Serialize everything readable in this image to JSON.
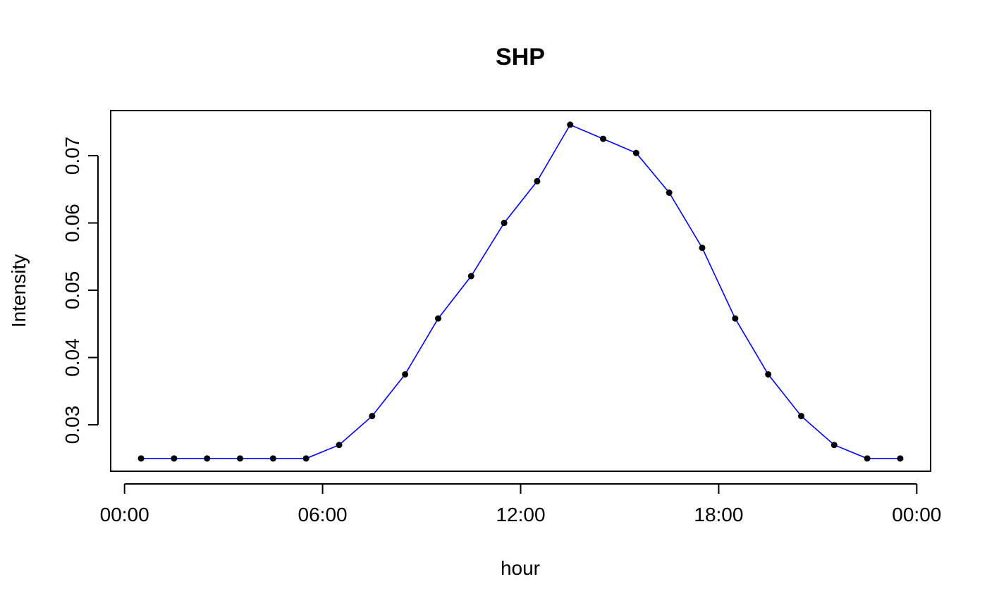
{
  "chart_data": {
    "type": "line",
    "title": "SHP",
    "xlabel": "hour",
    "ylabel": "Intensity",
    "x_tick_labels": [
      "00:00",
      "06:00",
      "12:00",
      "18:00",
      "00:00"
    ],
    "x_tick_hours": [
      0,
      6,
      12,
      18,
      24
    ],
    "y_tick_labels": [
      "0.03",
      "0.04",
      "0.05",
      "0.06",
      "0.07"
    ],
    "y_tick_values": [
      0.03,
      0.04,
      0.05,
      0.06,
      0.07
    ],
    "xlim": [
      -0.42,
      24.42
    ],
    "ylim": [
      0.0231,
      0.0767
    ],
    "grid": false,
    "line_color": "#0000ff",
    "point_color": "#000000",
    "series": [
      {
        "x": [
          0.5,
          1.5,
          2.5,
          3.5,
          4.5,
          5.5,
          6.5,
          7.5,
          8.5,
          9.5,
          10.5,
          11.5,
          12.5,
          13.5,
          14.5,
          15.5,
          16.5,
          17.5,
          18.5,
          19.5,
          20.5,
          21.5,
          22.5,
          23.5
        ],
        "values": [
          0.025,
          0.025,
          0.025,
          0.025,
          0.025,
          0.025,
          0.027,
          0.0313,
          0.0375,
          0.0458,
          0.0521,
          0.06,
          0.0662,
          0.0746,
          0.0725,
          0.0704,
          0.0645,
          0.0563,
          0.0458,
          0.0375,
          0.0313,
          0.027,
          0.025,
          0.025
        ]
      }
    ]
  }
}
